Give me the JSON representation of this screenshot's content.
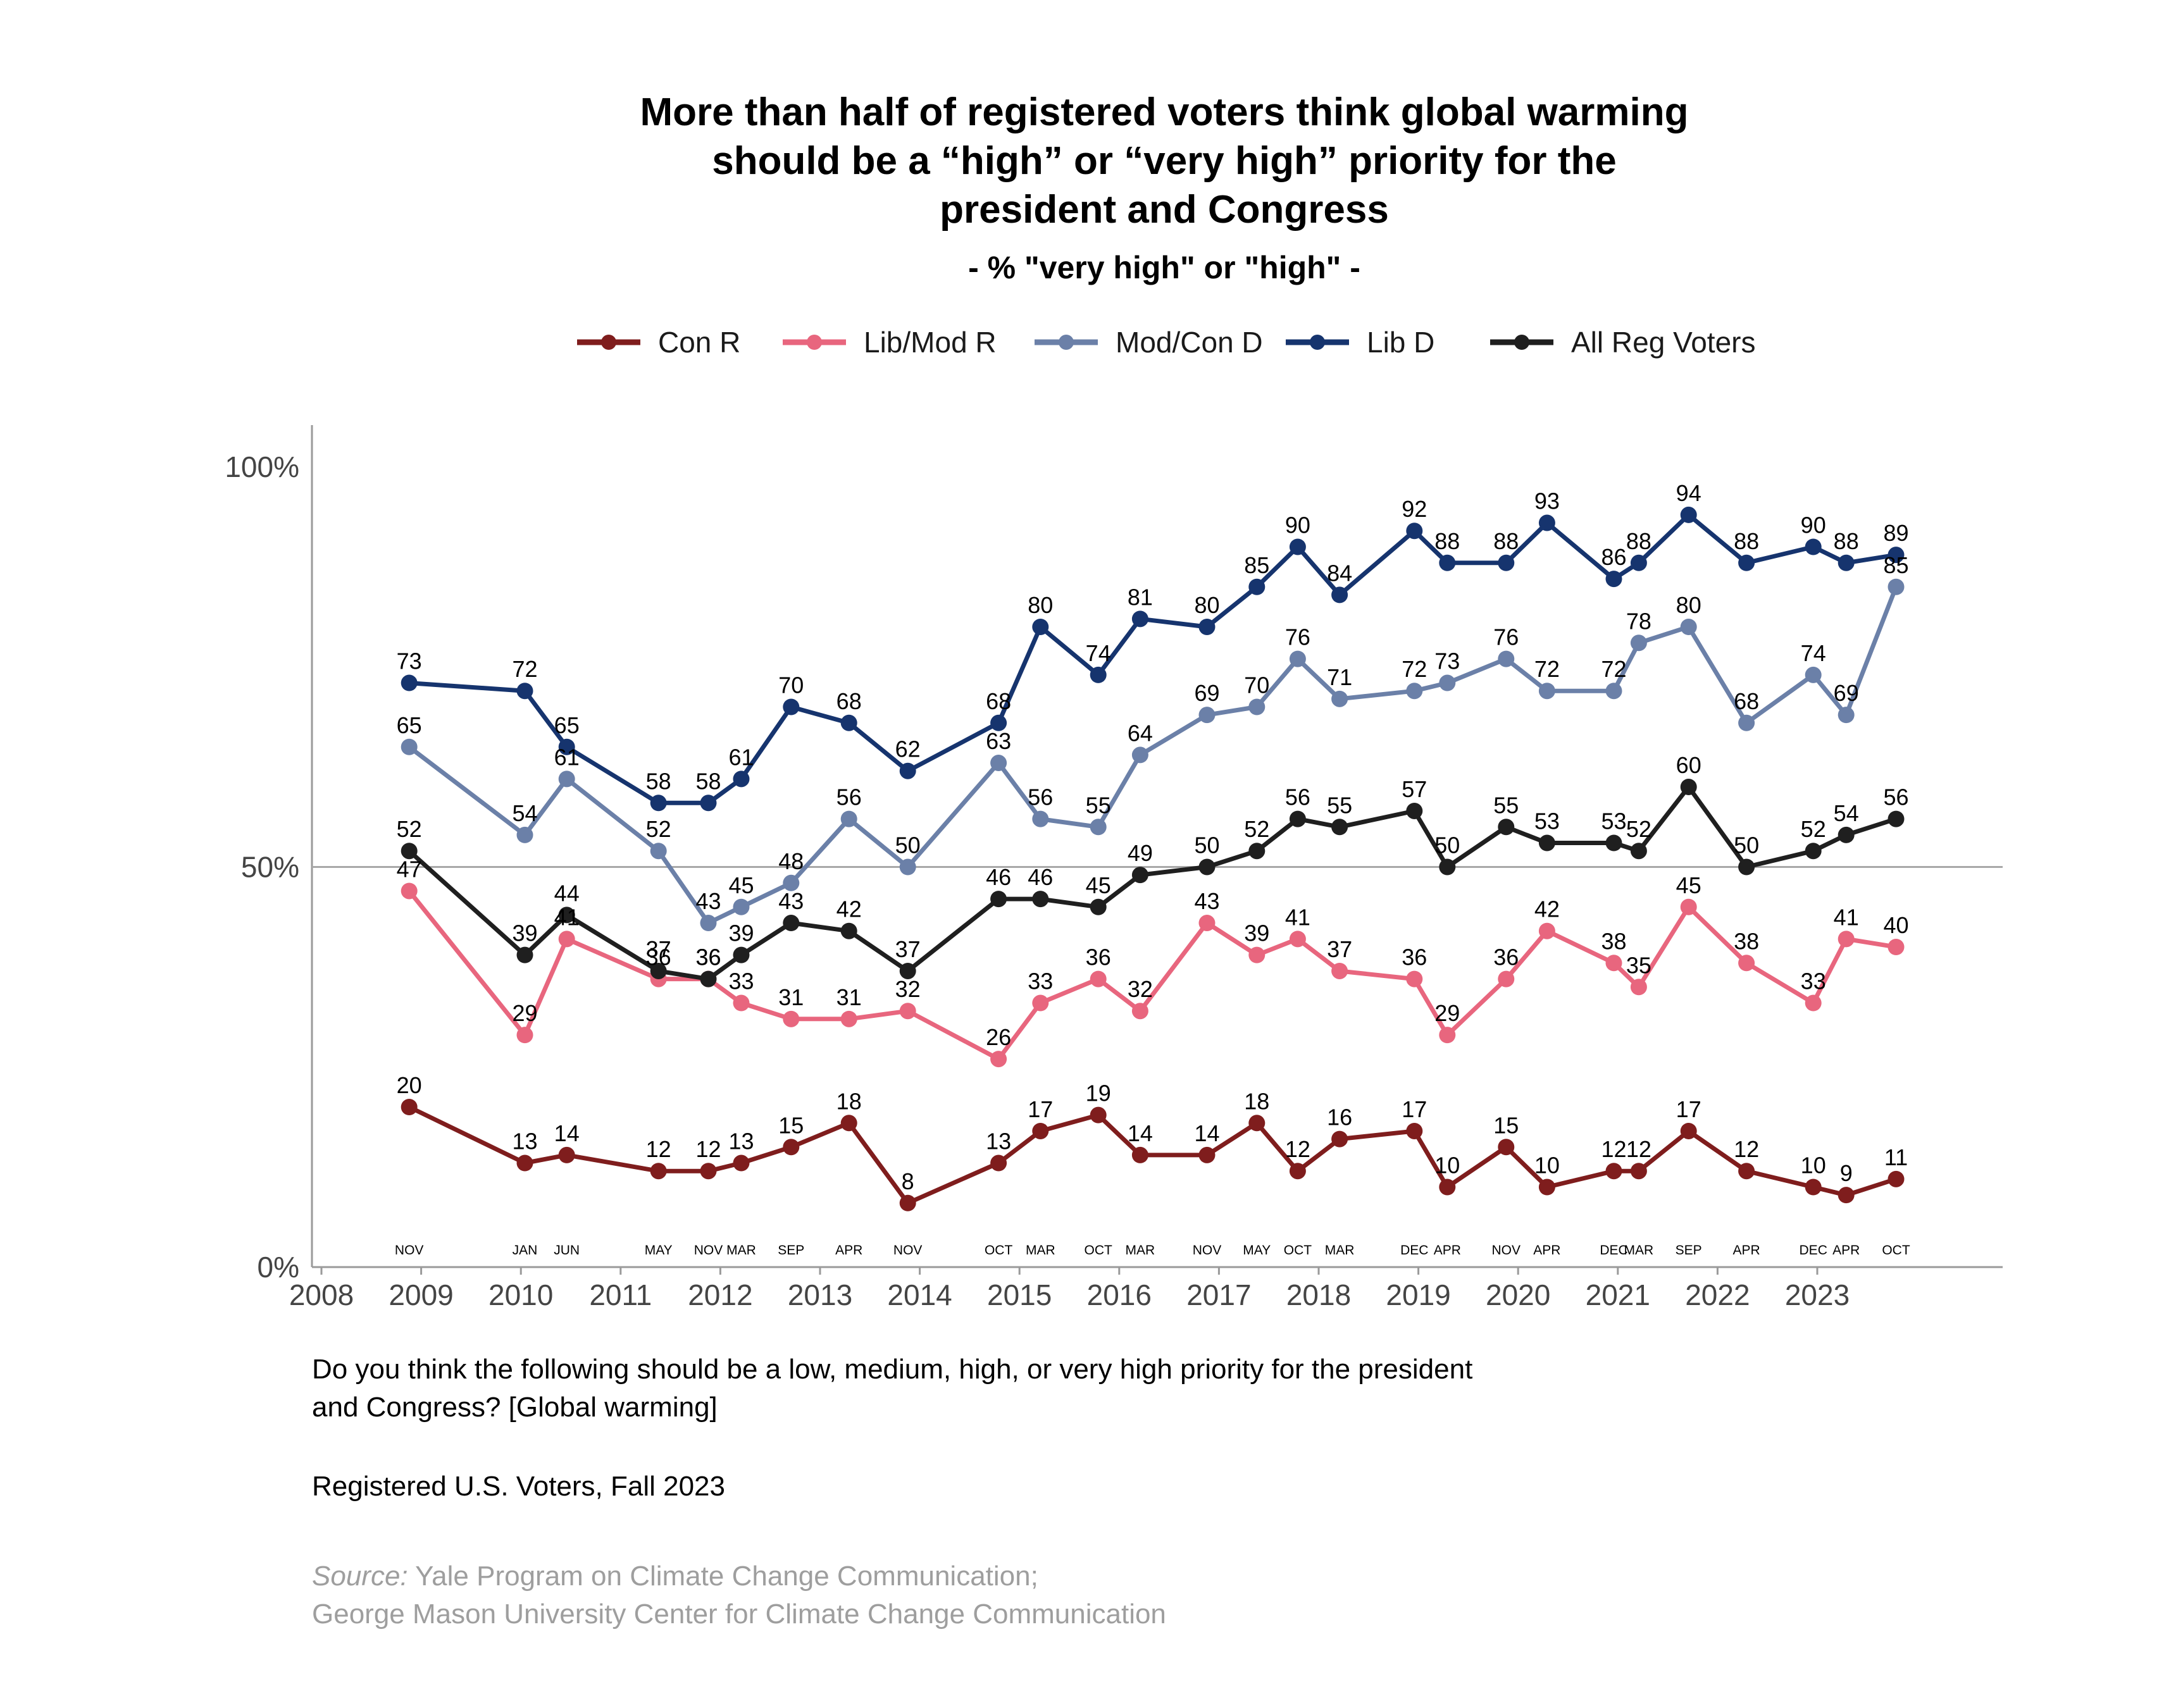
{
  "chart_data": {
    "type": "line",
    "title": [
      "More than half of registered voters think global warming",
      "should be a “high” or “very high” priority for the",
      "president and Congress"
    ],
    "subtitle": "- % \"very high\" or \"high\" -",
    "legend_position": "top",
    "ylim": [
      0,
      100
    ],
    "yticks": [
      0,
      50,
      100
    ],
    "ytick_labels": [
      "0%",
      "50%",
      "100%"
    ],
    "reference_line": 50,
    "xlim": [
      2008,
      2024.4
    ],
    "xticks": [
      "2008",
      "2009",
      "2010",
      "2011",
      "2012",
      "2013",
      "2014",
      "2015",
      "2016",
      "2017",
      "2018",
      "2019",
      "2020",
      "2021",
      "2022",
      "2023"
    ],
    "grid": false,
    "x": [
      2008.88,
      2010.04,
      2010.46,
      2011.38,
      2011.88,
      2012.21,
      2012.71,
      2013.29,
      2013.88,
      2014.79,
      2015.21,
      2015.79,
      2016.21,
      2016.88,
      2017.38,
      2017.79,
      2018.21,
      2018.96,
      2019.29,
      2019.88,
      2020.29,
      2020.96,
      2021.21,
      2021.71,
      2022.29,
      2022.96,
      2023.29,
      2023.79
    ],
    "month_labels": [
      "NOV",
      "JAN",
      "JUN",
      "MAY",
      "NOV",
      "MAR",
      "SEP",
      "APR",
      "NOV",
      "OCT",
      "MAR",
      "OCT",
      "MAR",
      "NOV",
      "MAY",
      "OCT",
      "MAR",
      "DEC",
      "APR",
      "NOV",
      "APR",
      "DEC",
      "MAR",
      "SEP",
      "APR",
      "DEC",
      "APR",
      "OCT"
    ],
    "series": [
      {
        "name": "Con R",
        "color": "#7f1d1d",
        "values": [
          20,
          13,
          14,
          12,
          12,
          13,
          15,
          18,
          8,
          13,
          17,
          19,
          14,
          14,
          18,
          12,
          16,
          17,
          10,
          15,
          10,
          12,
          12,
          17,
          12,
          10,
          9,
          11
        ]
      },
      {
        "name": "Lib/Mod R",
        "color": "#e8667e",
        "values": [
          47,
          29,
          41,
          36,
          36,
          33,
          31,
          31,
          32,
          26,
          33,
          36,
          32,
          43,
          39,
          41,
          37,
          36,
          29,
          36,
          42,
          38,
          35,
          45,
          38,
          33,
          41,
          40
        ]
      },
      {
        "name": "Mod/Con D",
        "color": "#6b80a8",
        "values": [
          65,
          54,
          61,
          52,
          43,
          45,
          48,
          56,
          50,
          63,
          56,
          55,
          64,
          69,
          70,
          76,
          71,
          72,
          73,
          76,
          72,
          72,
          78,
          80,
          68,
          74,
          69,
          85
        ]
      },
      {
        "name": "Lib D",
        "color": "#16346e",
        "values": [
          73,
          72,
          65,
          58,
          58,
          61,
          70,
          68,
          62,
          68,
          80,
          74,
          81,
          80,
          85,
          90,
          84,
          92,
          88,
          88,
          93,
          86,
          88,
          94,
          88,
          90,
          88,
          89
        ]
      },
      {
        "name": "All Reg Voters",
        "color": "#1f1f1f",
        "values": [
          52,
          39,
          44,
          37,
          36,
          39,
          43,
          42,
          37,
          46,
          46,
          45,
          49,
          50,
          52,
          56,
          55,
          57,
          50,
          55,
          53,
          53,
          52,
          60,
          50,
          52,
          54,
          56
        ]
      }
    ]
  },
  "footer": {
    "question_line1": "Do you think the following should be a low, medium, high, or very high priority for the president",
    "question_line2": "and Congress? [Global warming]",
    "sample": "Registered U.S. Voters, Fall 2023",
    "source_prefix": "Source:",
    "source_line1": " Yale Program on Climate Change Communication;",
    "source_line2": "George Mason University Center for Climate Change Communication"
  }
}
